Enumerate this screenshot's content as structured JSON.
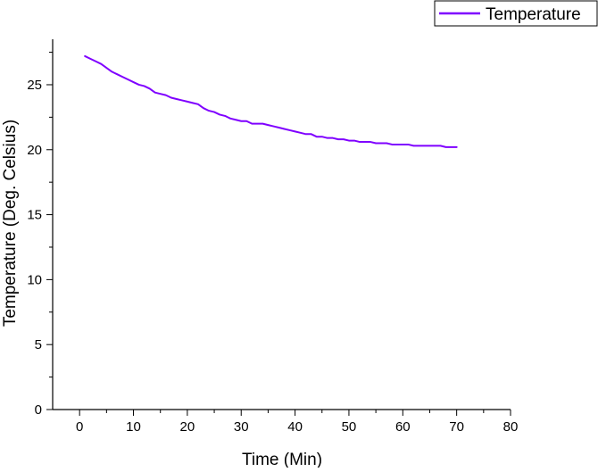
{
  "chart_data": {
    "type": "line",
    "title": "",
    "xlabel": "Time (Min)",
    "ylabel": "Temperature (Deg. Celsius)",
    "xlim": [
      -5,
      80
    ],
    "ylim": [
      0,
      28.5
    ],
    "xticks": [
      0,
      10,
      20,
      30,
      40,
      50,
      60,
      70,
      80
    ],
    "yticks": [
      0,
      5,
      10,
      15,
      20,
      25
    ],
    "grid": false,
    "legend_position": "top-right",
    "series": [
      {
        "name": "Temperature",
        "color": "#7f00ff",
        "x": [
          1,
          2,
          3,
          4,
          5,
          6,
          7,
          8,
          9,
          10,
          11,
          12,
          13,
          14,
          15,
          16,
          17,
          18,
          19,
          20,
          21,
          22,
          23,
          24,
          25,
          26,
          27,
          28,
          29,
          30,
          31,
          32,
          33,
          34,
          35,
          36,
          37,
          38,
          39,
          40,
          41,
          42,
          43,
          44,
          45,
          46,
          47,
          48,
          49,
          50,
          51,
          52,
          53,
          54,
          55,
          56,
          57,
          58,
          59,
          60,
          61,
          62,
          63,
          64,
          65,
          66,
          67,
          68,
          69,
          70
        ],
        "y": [
          27.2,
          27.0,
          26.8,
          26.6,
          26.3,
          26.0,
          25.8,
          25.6,
          25.4,
          25.2,
          25.0,
          24.9,
          24.7,
          24.4,
          24.3,
          24.2,
          24.0,
          23.9,
          23.8,
          23.7,
          23.6,
          23.5,
          23.2,
          23.0,
          22.9,
          22.7,
          22.6,
          22.4,
          22.3,
          22.2,
          22.2,
          22.0,
          22.0,
          22.0,
          21.9,
          21.8,
          21.7,
          21.6,
          21.5,
          21.4,
          21.3,
          21.2,
          21.2,
          21.0,
          21.0,
          20.9,
          20.9,
          20.8,
          20.8,
          20.7,
          20.7,
          20.6,
          20.6,
          20.6,
          20.5,
          20.5,
          20.5,
          20.4,
          20.4,
          20.4,
          20.4,
          20.3,
          20.3,
          20.3,
          20.3,
          20.3,
          20.3,
          20.2,
          20.2,
          20.2
        ]
      }
    ]
  }
}
